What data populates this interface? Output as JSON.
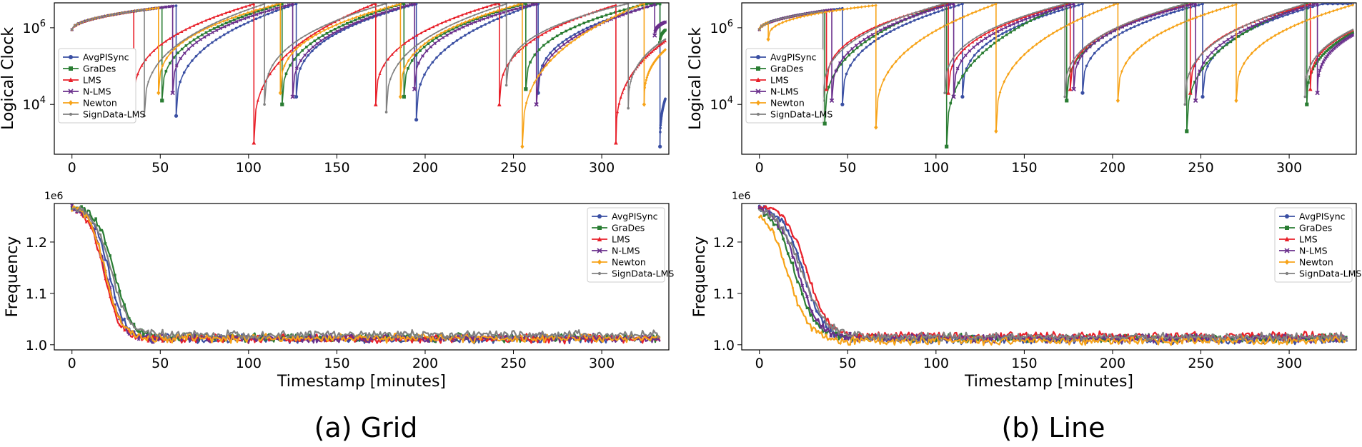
{
  "captions": [
    "(a) Grid",
    "(b) Line"
  ],
  "series_colors": {
    "AvgPISync": "#3a4fa3",
    "GraDes": "#2a7d33",
    "LMS": "#e8202a",
    "N-LMS": "#6a2f8c",
    "Newton": "#f7a318",
    "SignData-LMS": "#808080"
  },
  "chart_data": [
    {
      "panel": "grid-logical-clock",
      "type": "line",
      "caption": "(a) Grid",
      "ylabel": "Logical Clock",
      "xlabel": "",
      "yscale": "log",
      "xlim": [
        -10,
        338
      ],
      "ylim_log10": [
        2.7,
        6.65
      ],
      "xticks": [
        "0",
        "50",
        "100",
        "150",
        "200",
        "250",
        "300"
      ],
      "yticks": [
        {
          "base": "10",
          "exp": "4",
          "log": 4
        },
        {
          "base": "10",
          "exp": "6",
          "log": 6
        }
      ],
      "legend": [
        "AvgPISync",
        "GraDes",
        "LMS",
        "N-LMS",
        "Newton",
        "SignData-LMS"
      ],
      "legend_position": "center-left",
      "series": [
        {
          "name": "AvgPISync",
          "marker": "circle",
          "resets": [
            [
              59,
              3.7
            ],
            [
              127,
              4.2
            ],
            [
              195,
              3.6
            ],
            [
              264,
              4.3
            ],
            [
              333,
              2.9
            ]
          ]
        },
        {
          "name": "GraDes",
          "marker": "square",
          "resets": [
            [
              51,
              4.1
            ],
            [
              119,
              4.0
            ],
            [
              188,
              4.2
            ],
            [
              257,
              4.4
            ],
            [
              333,
              5.6
            ]
          ]
        },
        {
          "name": "LMS",
          "marker": "triangle",
          "resets": [
            [
              35,
              4.0
            ],
            [
              103,
              3.0
            ],
            [
              172,
              4.0
            ],
            [
              242,
              4.0
            ],
            [
              308,
              3.0
            ]
          ]
        },
        {
          "name": "N-LMS",
          "marker": "x",
          "resets": [
            [
              57,
              4.3
            ],
            [
              125,
              4.2
            ],
            [
              194,
              4.4
            ],
            [
              263,
              4.0
            ],
            [
              330,
              5.8
            ]
          ]
        },
        {
          "name": "Newton",
          "marker": "diamond",
          "resets": [
            [
              49,
              4.3
            ],
            [
              118,
              4.3
            ],
            [
              186,
              4.2
            ],
            [
              255,
              2.9
            ],
            [
              324,
              4.0
            ]
          ]
        },
        {
          "name": "SignData-LMS",
          "marker": "dot",
          "resets": [
            [
              41,
              3.7
            ],
            [
              109,
              4.0
            ],
            [
              178,
              3.8
            ],
            [
              246,
              4.5
            ],
            [
              315,
              3.9
            ]
          ]
        }
      ]
    },
    {
      "panel": "line-logical-clock",
      "type": "line",
      "caption": "(b) Line",
      "ylabel": "Logical Clock",
      "xlabel": "",
      "yscale": "log",
      "xlim": [
        -10,
        338
      ],
      "ylim_log10": [
        2.7,
        6.65
      ],
      "xticks": [
        "0",
        "50",
        "100",
        "150",
        "200",
        "250",
        "300"
      ],
      "yticks": [
        {
          "base": "10",
          "exp": "4",
          "log": 4
        },
        {
          "base": "10",
          "exp": "6",
          "log": 6
        }
      ],
      "legend": [
        "AvgPISync",
        "GraDes",
        "LMS",
        "N-LMS",
        "Newton",
        "SignData-LMS"
      ],
      "legend_position": "center-left",
      "series": [
        {
          "name": "AvgPISync",
          "marker": "circle",
          "resets": [
            [
              47,
              4.0
            ],
            [
              115,
              4.2
            ],
            [
              183,
              4.3
            ],
            [
              251,
              4.2
            ]
          ]
        },
        {
          "name": "GraDes",
          "marker": "square",
          "resets": [
            [
              37,
              3.5
            ],
            [
              106,
              2.9
            ],
            [
              174,
              4.1
            ],
            [
              242,
              3.3
            ],
            [
              310,
              4.0
            ]
          ]
        },
        {
          "name": "LMS",
          "marker": "triangle",
          "resets": [
            [
              38,
              4.4
            ],
            [
              107,
              4.3
            ],
            [
              176,
              4.4
            ],
            [
              244,
              4.3
            ],
            [
              312,
              4.4
            ]
          ]
        },
        {
          "name": "N-LMS",
          "marker": "x",
          "resets": [
            [
              41,
              4.1
            ],
            [
              110,
              4.2
            ],
            [
              178,
              4.4
            ],
            [
              247,
              4.1
            ],
            [
              316,
              4.3
            ]
          ]
        },
        {
          "name": "Newton",
          "marker": "diamond",
          "resets": [
            [
              5,
              5.7
            ],
            [
              66,
              3.4
            ],
            [
              134,
              3.3
            ],
            [
              203,
              4.1
            ],
            [
              270,
              4.1
            ]
          ]
        },
        {
          "name": "SignData-LMS",
          "marker": "dot",
          "resets": [
            [
              36,
              4.1
            ],
            [
              105,
              4.3
            ],
            [
              173,
              4.2
            ],
            [
              241,
              4.0
            ],
            [
              309,
              4.2
            ]
          ]
        }
      ]
    },
    {
      "panel": "grid-frequency",
      "type": "line",
      "caption": "(a) Grid",
      "ylabel": "Frequency",
      "xlabel": "Timestamp [minutes]",
      "offset_text": "1e6",
      "xlim": [
        -10,
        338
      ],
      "ylim": [
        0.99,
        1.275
      ],
      "xticks": [
        "0",
        "50",
        "100",
        "150",
        "200",
        "250",
        "300"
      ],
      "yticks": [
        "1.0",
        "1.1",
        "1.2"
      ],
      "legend": [
        "AvgPISync",
        "GraDes",
        "LMS",
        "N-LMS",
        "Newton",
        "SignData-LMS"
      ],
      "legend_position": "top-right",
      "series": [
        {
          "name": "AvgPISync",
          "marker": "circle",
          "start": 1.27,
          "decay_mid": 21,
          "decay_width": 4.5,
          "plateau": 1.012
        },
        {
          "name": "GraDes",
          "marker": "square",
          "start": 1.27,
          "decay_mid": 24,
          "decay_width": 5,
          "plateau": 1.014
        },
        {
          "name": "LMS",
          "marker": "triangle",
          "start": 1.27,
          "decay_mid": 18,
          "decay_width": 4.5,
          "plateau": 1.012
        },
        {
          "name": "N-LMS",
          "marker": "x",
          "start": 1.27,
          "decay_mid": 19,
          "decay_width": 4.5,
          "plateau": 1.013
        },
        {
          "name": "Newton",
          "marker": "diamond",
          "start": 1.27,
          "decay_mid": 19,
          "decay_width": 4.5,
          "plateau": 1.013
        },
        {
          "name": "SignData-LMS",
          "marker": "dot",
          "start": 1.27,
          "decay_mid": 22,
          "decay_width": 5,
          "plateau": 1.02
        }
      ]
    },
    {
      "panel": "line-frequency",
      "type": "line",
      "caption": "(b) Line",
      "ylabel": "Frequency",
      "xlabel": "Timestamp [minutes]",
      "offset_text": "1e6",
      "xlim": [
        -10,
        338
      ],
      "ylim": [
        0.99,
        1.275
      ],
      "xticks": [
        "0",
        "50",
        "100",
        "150",
        "200",
        "250",
        "300"
      ],
      "yticks": [
        "1.0",
        "1.1",
        "1.2"
      ],
      "legend": [
        "AvgPISync",
        "GraDes",
        "LMS",
        "N-LMS",
        "Newton",
        "SignData-LMS"
      ],
      "legend_position": "top-right",
      "series": [
        {
          "name": "AvgPISync",
          "marker": "circle",
          "start": 1.27,
          "decay_mid": 25,
          "decay_width": 6,
          "plateau": 1.01
        },
        {
          "name": "GraDes",
          "marker": "square",
          "start": 1.27,
          "decay_mid": 20,
          "decay_width": 6,
          "plateau": 1.013
        },
        {
          "name": "LMS",
          "marker": "triangle",
          "start": 1.27,
          "decay_mid": 27,
          "decay_width": 6,
          "plateau": 1.017
        },
        {
          "name": "N-LMS",
          "marker": "x",
          "start": 1.27,
          "decay_mid": 22,
          "decay_width": 6,
          "plateau": 1.012
        },
        {
          "name": "Newton",
          "marker": "diamond",
          "start": 1.27,
          "decay_mid": 16,
          "decay_width": 6,
          "plateau": 1.008
        },
        {
          "name": "SignData-LMS",
          "marker": "dot",
          "start": 1.27,
          "decay_mid": 24,
          "decay_width": 7,
          "plateau": 1.015
        }
      ]
    }
  ]
}
